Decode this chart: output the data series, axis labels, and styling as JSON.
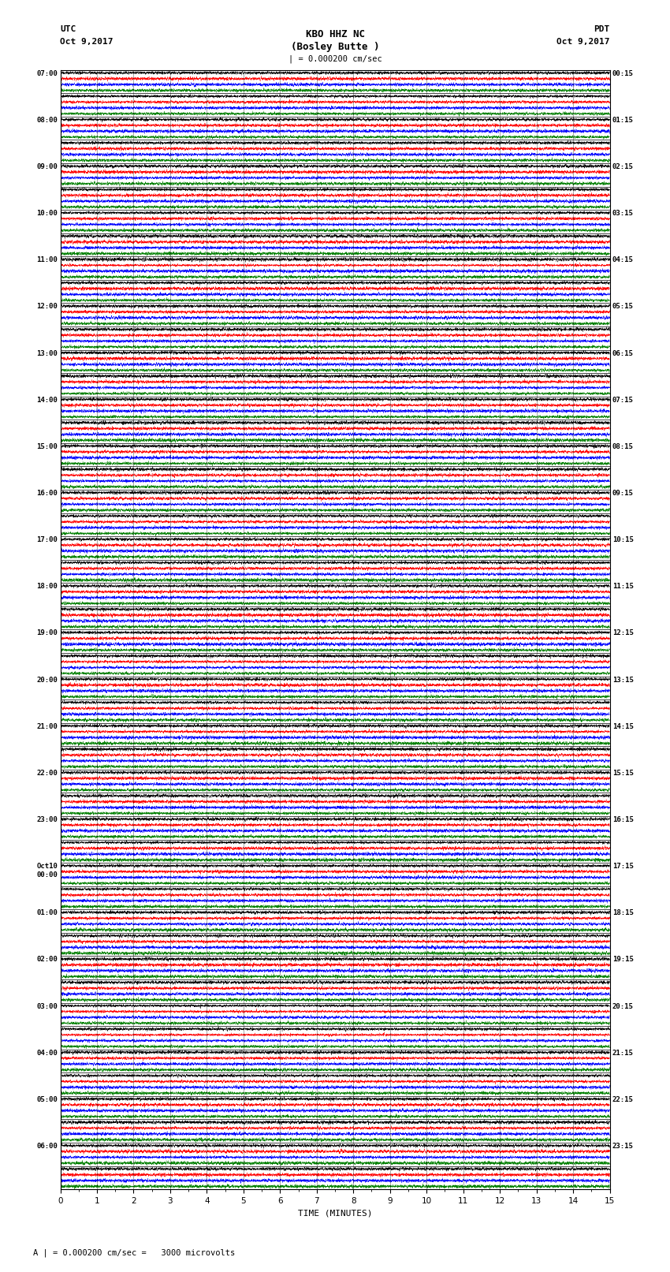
{
  "title_line1": "KBO HHZ NC",
  "title_line2": "(Bosley Butte )",
  "scale_label": "| = 0.000200 cm/sec",
  "label_left_top": "UTC",
  "label_left_date": "Oct 9,2017",
  "label_right_top": "PDT",
  "label_right_date": "Oct 9,2017",
  "bottom_label": "TIME (MINUTES)",
  "footer_label": "A | = 0.000200 cm/sec =   3000 microvolts",
  "xlabel_ticks": [
    0,
    1,
    2,
    3,
    4,
    5,
    6,
    7,
    8,
    9,
    10,
    11,
    12,
    13,
    14,
    15
  ],
  "xlim": [
    0,
    15
  ],
  "num_rows": 48,
  "left_labels_utc": [
    "07:00",
    "",
    "08:00",
    "",
    "09:00",
    "",
    "10:00",
    "",
    "11:00",
    "",
    "12:00",
    "",
    "13:00",
    "",
    "14:00",
    "",
    "15:00",
    "",
    "16:00",
    "",
    "17:00",
    "",
    "18:00",
    "",
    "19:00",
    "",
    "20:00",
    "",
    "21:00",
    "",
    "22:00",
    "",
    "23:00",
    "",
    "Oct10\n00:00",
    "",
    "01:00",
    "",
    "02:00",
    "",
    "03:00",
    "",
    "04:00",
    "",
    "05:00",
    "",
    "06:00"
  ],
  "right_labels_pdt": [
    "00:15",
    "",
    "01:15",
    "",
    "02:15",
    "",
    "03:15",
    "",
    "04:15",
    "",
    "05:15",
    "",
    "06:15",
    "",
    "07:15",
    "",
    "08:15",
    "",
    "09:15",
    "",
    "10:15",
    "",
    "11:15",
    "",
    "12:15",
    "",
    "13:15",
    "",
    "14:15",
    "",
    "15:15",
    "",
    "16:15",
    "",
    "17:15",
    "",
    "18:15",
    "",
    "19:15",
    "",
    "20:15",
    "",
    "21:15",
    "",
    "22:15",
    "",
    "23:15"
  ],
  "colors": [
    "black",
    "red",
    "blue",
    "green"
  ],
  "bg_color": "white",
  "fig_width": 8.5,
  "fig_height": 16.13,
  "dpi": 100,
  "seed": 42
}
